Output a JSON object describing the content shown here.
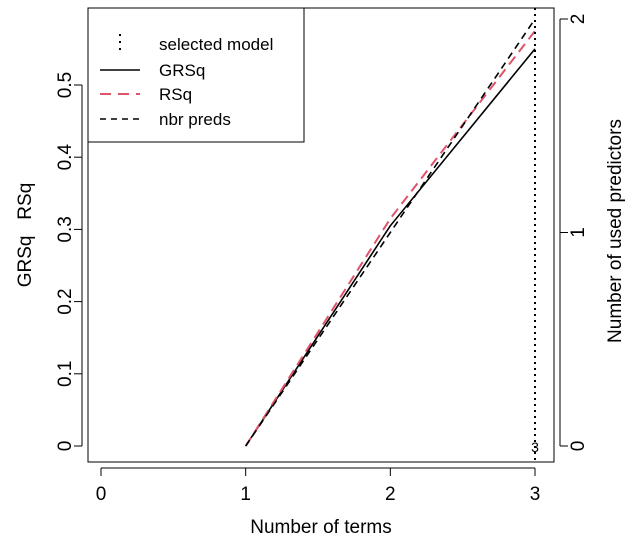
{
  "chart_data": {
    "type": "line",
    "title": "",
    "xlabel": "Number of terms",
    "ylabel_left": "GRSq   RSq",
    "ylabel_right": "Number of used predictors",
    "xlim": [
      0,
      3
    ],
    "x_ticks": [
      "0",
      "1",
      "2",
      "3"
    ],
    "ylim_left": [
      0,
      0.58
    ],
    "y_ticks_left": [
      "0",
      "0.1",
      "0.2",
      "0.3",
      "0.4",
      "0.5"
    ],
    "ylim_right": [
      0,
      2
    ],
    "y_ticks_right": [
      "0",
      "1",
      "2"
    ],
    "grid": false,
    "legend_position": "top-left",
    "selected_model": 3,
    "selected_model_label": "3",
    "series": [
      {
        "name": "GRSq",
        "axis": "left",
        "style": "solid",
        "color": "#000000",
        "x": [
          1,
          2,
          3
        ],
        "values": [
          0.0,
          0.305,
          0.55
        ]
      },
      {
        "name": "RSq",
        "axis": "left",
        "style": "dashed",
        "color": "#DF536B",
        "x": [
          1,
          2,
          3
        ],
        "values": [
          0.0,
          0.315,
          0.575
        ]
      },
      {
        "name": "nbr preds",
        "axis": "right",
        "style": "dashed",
        "color": "#000000",
        "x": [
          1,
          2,
          3
        ],
        "values": [
          0,
          1,
          2
        ]
      }
    ],
    "legend": [
      {
        "label": "selected model",
        "style": "dotted",
        "color": "#000000"
      },
      {
        "label": "GRSq",
        "style": "solid",
        "color": "#000000"
      },
      {
        "label": "RSq",
        "style": "dashed",
        "color": "#DF536B"
      },
      {
        "label": "nbr preds",
        "style": "dashed",
        "color": "#000000"
      }
    ]
  }
}
